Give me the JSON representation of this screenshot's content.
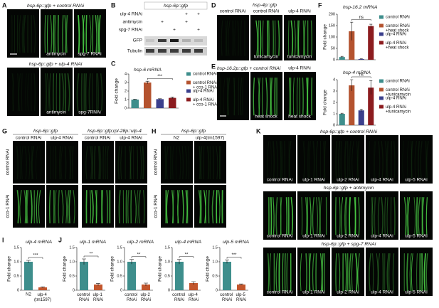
{
  "panels": {
    "labels": [
      "A",
      "B",
      "C",
      "D",
      "E",
      "F",
      "G",
      "H",
      "I",
      "J",
      "K"
    ],
    "A": {
      "headers": [
        "hsp-6p::gfp + control RNAi",
        "hsp-6p::gfp + ulp-4 RNAi"
      ],
      "image_labels": [
        "antimycin",
        "spg-7 RNAi",
        "antimycin",
        "spg-7RNAi"
      ]
    },
    "B": {
      "header": "hsp-6p::gfp",
      "rows": [
        {
          "label": "ulp-4 RNAi",
          "marks": [
            null,
            null,
            null,
            "+",
            "+"
          ]
        },
        {
          "label": "antimycin",
          "marks": [
            null,
            "+",
            null,
            "+",
            null
          ]
        },
        {
          "label": "spg-7 RNAi",
          "marks": [
            null,
            null,
            "+",
            null,
            "+"
          ]
        }
      ],
      "blots": [
        "GFP",
        "Tubulin"
      ]
    },
    "D": {
      "header": "hsp-4p::gfp",
      "columns": [
        "control RNAi",
        "control RNAi",
        "ulp-4 RNAi"
      ],
      "image_labels": [
        "tunicamycin",
        "tunicamycin"
      ]
    },
    "E": {
      "header": "hsp-16.2p::gfp + control RNAi",
      "columns": [
        "ulp-4 RNAi"
      ],
      "image_labels": [
        "heat shock",
        "heat shock"
      ]
    },
    "G": {
      "headers": [
        "hsp-6p::gfp",
        "hsp-6p::gfp;rpl-28p::ulp-4"
      ],
      "columns": [
        "control RNAi",
        "ulp-4 RNAi",
        "control RNAi",
        "ulp-4 RNAi"
      ],
      "rows": [
        "control RNAi",
        "cco-1 RNAi"
      ]
    },
    "H": {
      "header": "hsp-6p::gfp",
      "columns": [
        "N2",
        "ulp-4(tm1597)"
      ],
      "rows": [
        "control RNAi",
        "cco-1 RNAi"
      ]
    },
    "K": {
      "sections": [
        {
          "header": "hsp-6p::gfp + control RNAi",
          "labels": [
            "control RNAi",
            "ulp-1 RNAi",
            "ulp-2 RNAi",
            "ulp-4 RNAi",
            "ulp-5 RNAi"
          ]
        },
        {
          "header": "hsp-6p::gfp + antimycin",
          "labels": [
            "control RNAi",
            "ulp-1 RNAi",
            "ulp-2 RNAi",
            "ulp-4 RNAi",
            "ulp-5 RNAi"
          ]
        },
        {
          "header": "hsp-6p::gfp + spg-7 RNAi",
          "labels": [
            "control RNAi",
            "ulp-1 RNAi",
            "ulp-2 RNAi",
            "ulp-4 RNAi",
            "ulp-5 RNAi"
          ]
        }
      ]
    }
  },
  "chart_data": [
    {
      "type": "bar",
      "title": "hsp-6 mRNA",
      "ylabel": "Fold change",
      "legend": true,
      "categories": [
        "control RNAi",
        "control RNAi + cco-1 RNAi",
        "ulp-4 RNAi",
        "ulp-4 RNAi + cco-1 RNAi"
      ],
      "values": [
        1,
        3.0,
        1.05,
        1.2
      ],
      "errors": [
        0.05,
        0.15,
        0.05,
        0.1
      ],
      "colors": [
        "#3e8e8c",
        "#b4532f",
        "#3a3f8c",
        "#8c1c1f"
      ],
      "ylim": [
        0,
        4
      ],
      "yticks": [
        0,
        1,
        2,
        3,
        4
      ],
      "significance": "***"
    },
    {
      "type": "bar",
      "title": "hsp-16.2 mRNA",
      "ylabel": "Fold change",
      "legend": true,
      "categories": [
        "control RNAi",
        "control RNAi +heat shock",
        "ulp-4 RNAi",
        "ulp-4 RNAi +heat shock"
      ],
      "values": [
        12,
        125,
        3,
        148
      ],
      "errors": [
        3,
        40,
        1,
        8
      ],
      "colors": [
        "#3e8e8c",
        "#b4532f",
        "#3a3f8c",
        "#8c1c1f"
      ],
      "ylim": [
        0,
        200
      ],
      "yticks": [
        0,
        50,
        100,
        150,
        200
      ],
      "significance": "ns"
    },
    {
      "type": "bar",
      "title": "hsp-4 mRNA",
      "ylabel": "Fold change",
      "legend": true,
      "categories": [
        "control RNAi",
        "control RNAi +tunicamycin",
        "ulp-4 RNAi",
        "ulp-4 RNAi +tunicamycin"
      ],
      "values": [
        1,
        3.5,
        1.3,
        3.3
      ],
      "errors": [
        0.05,
        0.5,
        0.1,
        0.6
      ],
      "colors": [
        "#3e8e8c",
        "#b4532f",
        "#3a3f8c",
        "#8c1c1f"
      ],
      "ylim": [
        0,
        4
      ],
      "yticks": [
        0,
        1,
        2,
        3,
        4
      ],
      "significance": "ns"
    },
    {
      "type": "bar",
      "title": "ulp-4 mRNA",
      "ylabel": "Fold change",
      "legend": false,
      "categories": [
        "N2",
        "ulp-4 (tm1597)"
      ],
      "values": [
        1,
        0.1
      ],
      "errors": [
        0.05,
        0.02
      ],
      "colors": [
        "#3e8e8c",
        "#c2562d"
      ],
      "ylim": [
        0,
        1.5
      ],
      "yticks": [
        0,
        0.5,
        {
          "value": 1,
          "label": "1.0"
        },
        1.5
      ],
      "significance": "***"
    },
    {
      "type": "bar",
      "title": "ulp-1 mRNA",
      "ylabel": "Fold change",
      "legend": false,
      "categories": [
        "control RNAi",
        "ulp-1 RNAi"
      ],
      "values": [
        1,
        0.2
      ],
      "errors": [
        0.1,
        0.04
      ],
      "colors": [
        "#3e8e8c",
        "#c2562d"
      ],
      "ylim": [
        0,
        1.5
      ],
      "yticks": [
        0,
        0.5,
        {
          "value": 1,
          "label": "1.0"
        },
        1.5
      ],
      "significance": "**"
    },
    {
      "type": "bar",
      "title": "ulp-2 mRNA",
      "ylabel": "Fold change",
      "legend": false,
      "categories": [
        "control RNAi",
        "ulp-2 RNAi"
      ],
      "values": [
        1,
        0.2
      ],
      "errors": [
        0.08,
        0.05
      ],
      "colors": [
        "#3e8e8c",
        "#c2562d"
      ],
      "ylim": [
        0,
        1.5
      ],
      "yticks": [
        0,
        0.5,
        {
          "value": 1,
          "label": "1.0"
        },
        1.5
      ],
      "significance": "**"
    },
    {
      "type": "bar",
      "title": "ulp-4 mRNA",
      "ylabel": "Fold change",
      "legend": false,
      "categories": [
        "control RNAi",
        "ulp-4 RNAi"
      ],
      "values": [
        1,
        0.25
      ],
      "errors": [
        0.08,
        0.05
      ],
      "colors": [
        "#3e8e8c",
        "#c2562d"
      ],
      "ylim": [
        0,
        1.5
      ],
      "yticks": [
        0,
        0.5,
        {
          "value": 1,
          "label": "1.0"
        },
        1.5
      ],
      "significance": "**"
    },
    {
      "type": "bar",
      "title": "ulp-5 mRNA",
      "ylabel": "Fold change",
      "legend": false,
      "categories": [
        "control RNAi",
        "ulp-5 RNAi"
      ],
      "values": [
        1,
        0.2
      ],
      "errors": [
        0.06,
        0.02
      ],
      "colors": [
        "#3e8e8c",
        "#c2562d"
      ],
      "ylim": [
        0,
        1.5
      ],
      "yticks": [
        0,
        0.5,
        {
          "value": 1,
          "label": "1.0"
        },
        1.5
      ],
      "significance": "***"
    }
  ]
}
